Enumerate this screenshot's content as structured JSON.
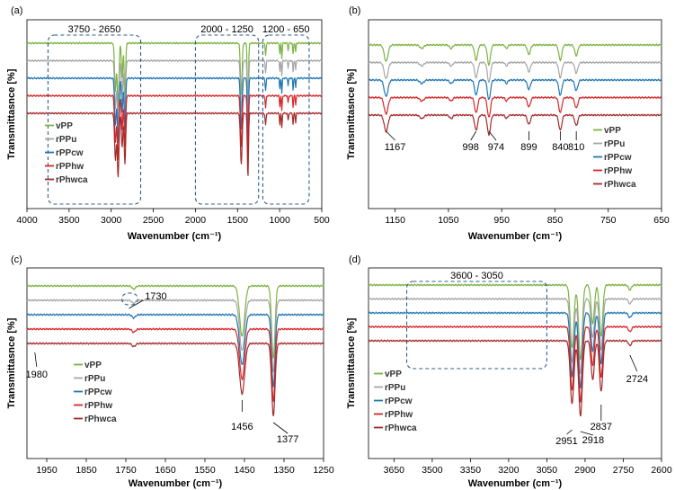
{
  "figure": {
    "series_colors": {
      "vPP": "#7cb342",
      "rPPu": "#a6a6a6",
      "rPPcw": "#1f77b4",
      "rPPhw": "#d62728",
      "rPhwca": "#a52a2a"
    }
  },
  "chart_data": [
    {
      "id": "a",
      "type": "line",
      "panel_label": "(a)",
      "xlabel": "Wavenumber (cm⁻¹)",
      "ylabel": "Transmittasnce [%]",
      "xlim": [
        4000,
        500
      ],
      "xticks": [
        4000,
        3500,
        3000,
        2500,
        2000,
        1500,
        1000,
        500
      ],
      "legend": [
        "vPP",
        "rPPu",
        "rPPcw",
        "rPPhw",
        "rPhwca"
      ],
      "legend_position": "bottom-left",
      "series": [
        {
          "name": "vPP",
          "offset": 0.0
        },
        {
          "name": "rPPu",
          "offset": 0.18
        },
        {
          "name": "rPPcw",
          "offset": 0.36
        },
        {
          "name": "rPPhw",
          "offset": 0.54
        },
        {
          "name": "rPhwca",
          "offset": 0.72
        }
      ],
      "peaks": [
        {
          "x": 2950,
          "depth": 0.55,
          "width": 14
        },
        {
          "x": 2918,
          "depth": 0.75,
          "width": 14
        },
        {
          "x": 2870,
          "depth": 0.4,
          "width": 12
        },
        {
          "x": 2837,
          "depth": 0.6,
          "width": 12
        },
        {
          "x": 1456,
          "depth": 0.6,
          "width": 14
        },
        {
          "x": 1377,
          "depth": 0.75,
          "width": 10
        },
        {
          "x": 1167,
          "depth": 0.14,
          "width": 8
        },
        {
          "x": 998,
          "depth": 0.14,
          "width": 6
        },
        {
          "x": 974,
          "depth": 0.18,
          "width": 6
        },
        {
          "x": 899,
          "depth": 0.09,
          "width": 6
        },
        {
          "x": 840,
          "depth": 0.14,
          "width": 6
        },
        {
          "x": 810,
          "depth": 0.11,
          "width": 6
        }
      ],
      "regions": [
        {
          "label": "3750 - 2650",
          "from": 3750,
          "to": 2650
        },
        {
          "label": "2000 - 1250",
          "from": 2000,
          "to": 1250
        },
        {
          "label": "1200 - 650",
          "from": 1200,
          "to": 650
        }
      ],
      "annotations": []
    },
    {
      "id": "b",
      "type": "line",
      "panel_label": "(b)",
      "xlabel": "Wavenumber (cm⁻¹)",
      "ylabel": "Transmittasnce [%]",
      "xlim": [
        1200,
        650
      ],
      "xticks": [
        1150,
        1050,
        950,
        850,
        750,
        650
      ],
      "legend": [
        "vPP",
        "rPPu",
        "rPPcw",
        "rPPhw",
        "rPhwca"
      ],
      "legend_position": "bottom-right",
      "series": [
        {
          "name": "vPP",
          "offset": 0.0
        },
        {
          "name": "rPPu",
          "offset": 0.17
        },
        {
          "name": "rPPcw",
          "offset": 0.33
        },
        {
          "name": "rPPhw",
          "offset": 0.56
        },
        {
          "name": "rPhwca",
          "offset": 0.72
        }
      ],
      "peaks": [
        {
          "x": 1167,
          "depth": 0.14,
          "width": 5
        },
        {
          "x": 1100,
          "depth": 0.03,
          "width": 5
        },
        {
          "x": 1045,
          "depth": 0.03,
          "width": 4
        },
        {
          "x": 998,
          "depth": 0.13,
          "width": 4
        },
        {
          "x": 974,
          "depth": 0.17,
          "width": 4
        },
        {
          "x": 941,
          "depth": 0.03,
          "width": 3
        },
        {
          "x": 899,
          "depth": 0.08,
          "width": 4
        },
        {
          "x": 840,
          "depth": 0.13,
          "width": 4
        },
        {
          "x": 810,
          "depth": 0.09,
          "width": 4
        }
      ],
      "regions": [],
      "annotations": [
        {
          "text": "1167",
          "x": 1167
        },
        {
          "text": "998",
          "x": 998
        },
        {
          "text": "974",
          "x": 974
        },
        {
          "text": "899",
          "x": 899
        },
        {
          "text": "840",
          "x": 840
        },
        {
          "text": "810",
          "x": 810
        }
      ]
    },
    {
      "id": "c",
      "type": "line",
      "panel_label": "(c)",
      "xlabel": "Wavenumber (cm⁻¹)",
      "ylabel": "Transmittasnce [%]",
      "xlim": [
        2000,
        1250
      ],
      "xticks": [
        1950,
        1850,
        1750,
        1650,
        1550,
        1450,
        1350,
        1250
      ],
      "legend": [
        "vPP",
        "rPPu",
        "rPPcw",
        "rPPhw",
        "rPhwca"
      ],
      "legend_position": "bottom-left",
      "series": [
        {
          "name": "vPP",
          "offset": 0.0
        },
        {
          "name": "rPPu",
          "offset": 0.14
        },
        {
          "name": "rPPcw",
          "offset": 0.28
        },
        {
          "name": "rPPhw",
          "offset": 0.46
        },
        {
          "name": "rPhwca",
          "offset": 0.56
        }
      ],
      "peaks": [
        {
          "x": 1730,
          "depth": 0.02,
          "width": 6
        },
        {
          "x": 1456,
          "depth": 0.32,
          "width": 9
        },
        {
          "x": 1377,
          "depth": 0.46,
          "width": 6
        }
      ],
      "regions": [
        {
          "label": "1730",
          "from": 1760,
          "to": 1720
        }
      ],
      "annotations": [
        {
          "text": "1980",
          "x": 1980
        },
        {
          "text": "1456",
          "x": 1456
        },
        {
          "text": "1377",
          "x": 1377
        }
      ]
    },
    {
      "id": "d",
      "type": "line",
      "panel_label": "(d)",
      "xlabel": "Wavenumber (cm⁻¹)",
      "ylabel": "Transmittasnce [%]",
      "xlim": [
        3750,
        2600
      ],
      "xticks": [
        3650,
        3500,
        3350,
        3200,
        3050,
        2900,
        2750,
        2600
      ],
      "legend": [
        "vPP",
        "rPPu",
        "rPPcw",
        "rPPhw",
        "rPhwca"
      ],
      "legend_position": "bottom-left",
      "series": [
        {
          "name": "vPP",
          "offset": 0.0
        },
        {
          "name": "rPPu",
          "offset": 0.14
        },
        {
          "name": "rPPcw",
          "offset": 0.26
        },
        {
          "name": "rPPhw",
          "offset": 0.4
        },
        {
          "name": "rPhwca",
          "offset": 0.52
        }
      ],
      "peaks": [
        {
          "x": 2951,
          "depth": 0.52,
          "width": 10
        },
        {
          "x": 2918,
          "depth": 0.62,
          "width": 10
        },
        {
          "x": 2870,
          "depth": 0.32,
          "width": 9
        },
        {
          "x": 2837,
          "depth": 0.42,
          "width": 9
        },
        {
          "x": 2724,
          "depth": 0.04,
          "width": 8
        }
      ],
      "regions": [
        {
          "label": "3600 - 3050",
          "from": 3600,
          "to": 3050
        }
      ],
      "annotations": [
        {
          "text": "2951",
          "x": 2951
        },
        {
          "text": "2918",
          "x": 2918
        },
        {
          "text": "2837",
          "x": 2837
        },
        {
          "text": "2724",
          "x": 2724
        }
      ]
    }
  ]
}
